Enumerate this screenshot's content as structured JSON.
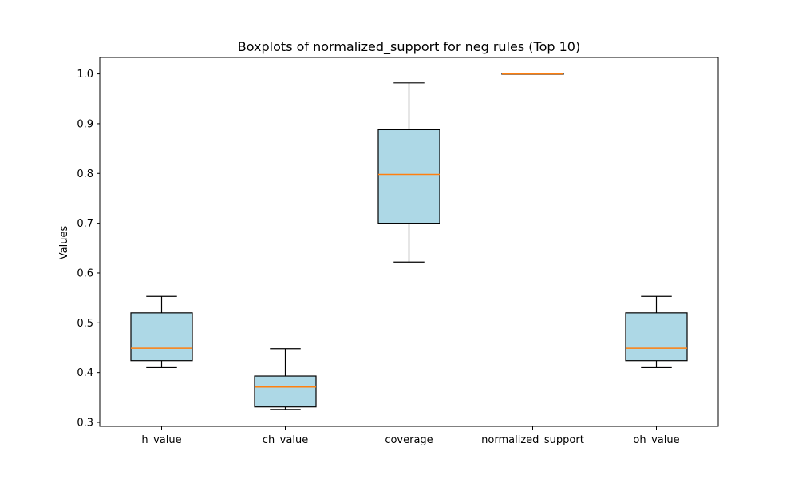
{
  "chart_data": {
    "type": "boxplot",
    "title": "Boxplots of normalized_support for neg rules (Top 10)",
    "xlabel": "",
    "ylabel": "Values",
    "ylim": [
      0.292,
      1.033
    ],
    "yticks": [
      0.3,
      0.4,
      0.5,
      0.6,
      0.7,
      0.8,
      0.9,
      1.0
    ],
    "ytick_labels": [
      "0.3",
      "0.4",
      "0.5",
      "0.6",
      "0.7",
      "0.8",
      "0.9",
      "1.0"
    ],
    "grid": false,
    "box_color": "#add8e6",
    "median_color": "#ff7f0e",
    "categories": [
      "h_value",
      "ch_value",
      "coverage",
      "normalized_support",
      "oh_value"
    ],
    "boxes": [
      {
        "name": "h_value",
        "whisker_low": 0.41,
        "q1": 0.424,
        "median": 0.449,
        "q3": 0.52,
        "whisker_high": 0.553
      },
      {
        "name": "ch_value",
        "whisker_low": 0.326,
        "q1": 0.331,
        "median": 0.371,
        "q3": 0.393,
        "whisker_high": 0.448
      },
      {
        "name": "coverage",
        "whisker_low": 0.622,
        "q1": 0.7,
        "median": 0.798,
        "q3": 0.888,
        "whisker_high": 0.982
      },
      {
        "name": "normalized_support",
        "whisker_low": 1.0,
        "q1": 1.0,
        "median": 1.0,
        "q3": 1.0,
        "whisker_high": 1.0
      },
      {
        "name": "oh_value",
        "whisker_low": 0.41,
        "q1": 0.424,
        "median": 0.449,
        "q3": 0.52,
        "whisker_high": 0.553
      }
    ]
  }
}
